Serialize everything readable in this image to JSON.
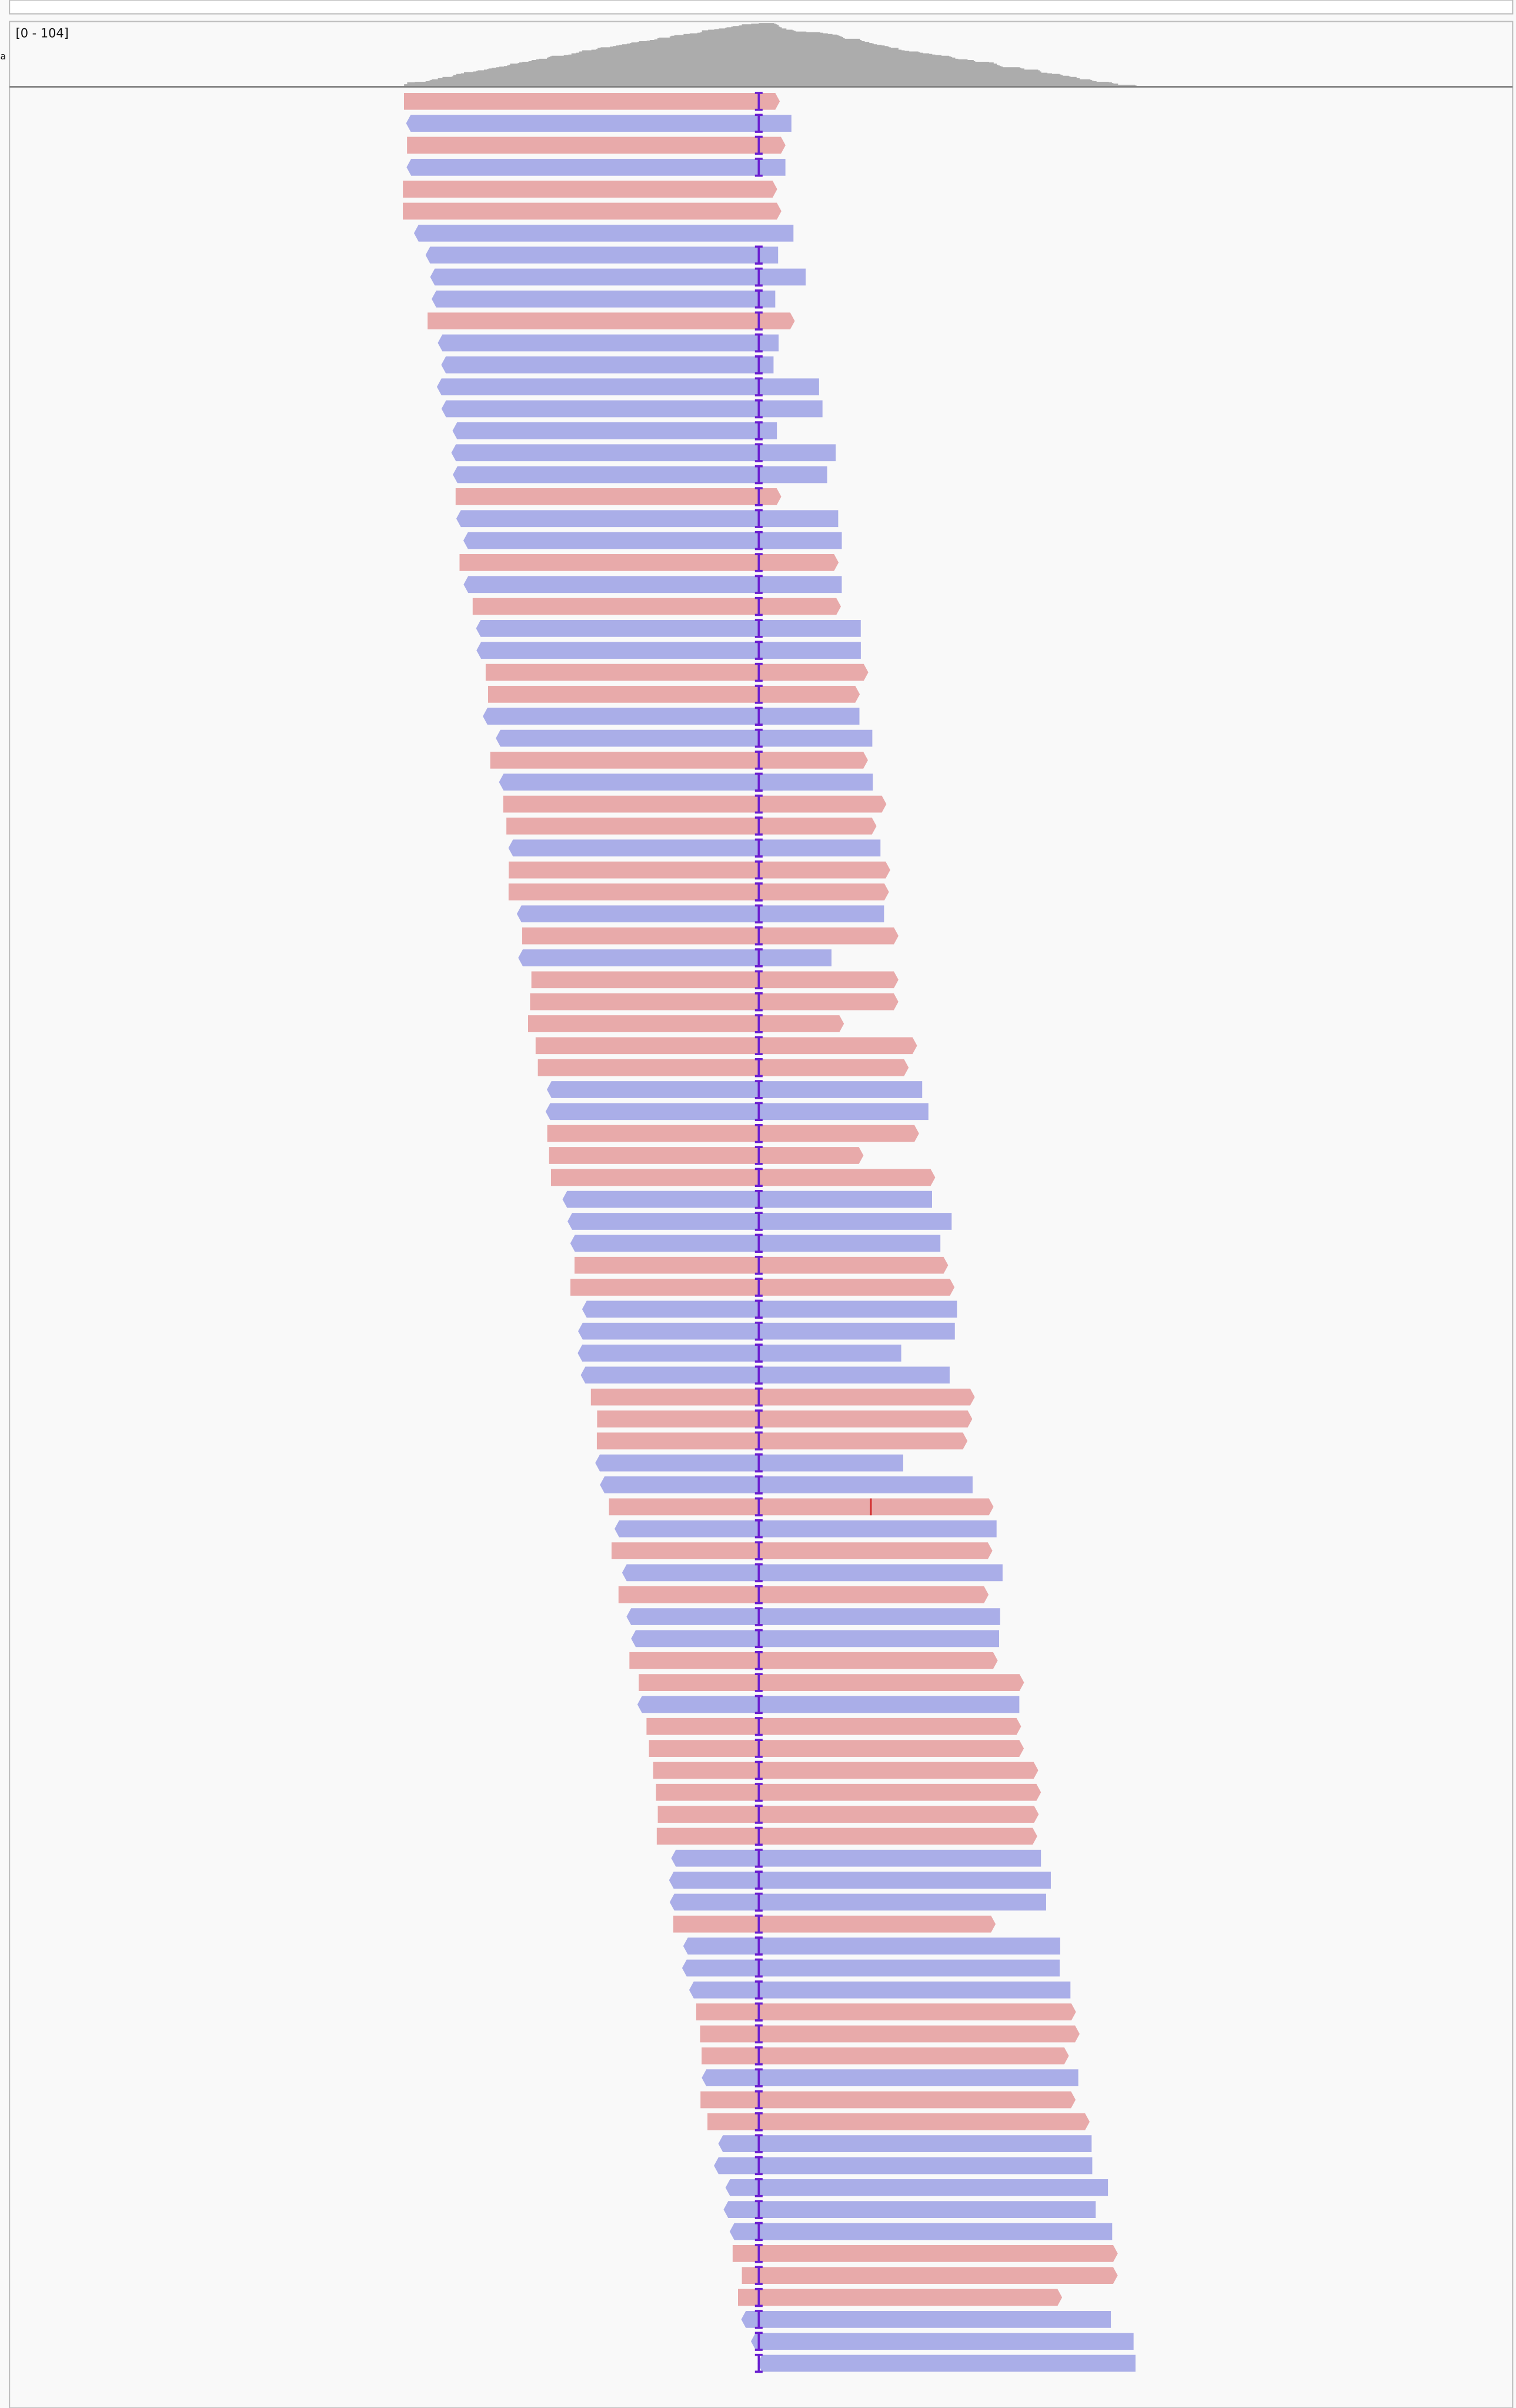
{
  "coverage_track": {
    "range_label": "[0 - 104]"
  }
}
